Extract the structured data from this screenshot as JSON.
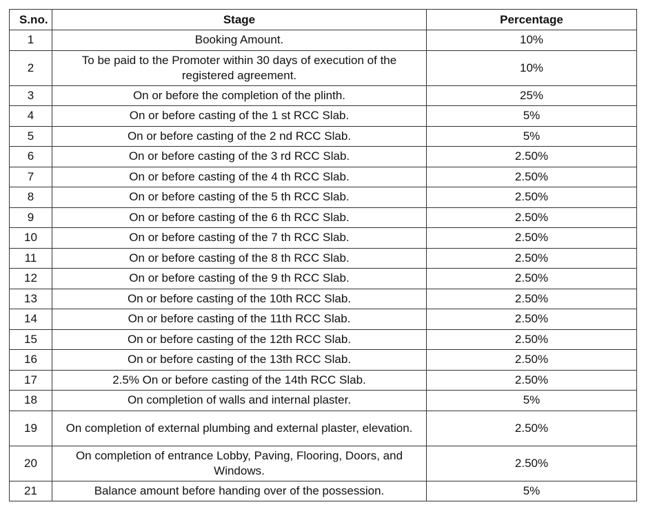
{
  "table": {
    "headers": {
      "sno": "S.no.",
      "stage": "Stage",
      "percentage": "Percentage"
    },
    "rows": [
      {
        "sno": "1",
        "stage": "Booking Amount.",
        "percentage": "10%"
      },
      {
        "sno": "2",
        "stage": "To be paid to the Promoter within 30 days of execution of the registered agreement.",
        "percentage": "10%"
      },
      {
        "sno": "3",
        "stage": "On or before the completion of the plinth.",
        "percentage": "25%"
      },
      {
        "sno": "4",
        "stage": "On or before casting of the 1 st RCC Slab.",
        "percentage": "5%"
      },
      {
        "sno": "5",
        "stage": "On or before casting of the 2 nd RCC Slab.",
        "percentage": "5%"
      },
      {
        "sno": "6",
        "stage": "On or before casting of the 3 rd RCC Slab.",
        "percentage": "2.50%"
      },
      {
        "sno": "7",
        "stage": "On or before casting of the 4 th RCC Slab.",
        "percentage": "2.50%"
      },
      {
        "sno": "8",
        "stage": "On or before casting of the 5 th RCC Slab.",
        "percentage": "2.50%"
      },
      {
        "sno": "9",
        "stage": "On or before casting of the 6 th RCC Slab.",
        "percentage": "2.50%"
      },
      {
        "sno": "10",
        "stage": "On or before casting of the 7 th RCC Slab.",
        "percentage": "2.50%"
      },
      {
        "sno": "11",
        "stage": "On or before casting of the 8 th RCC Slab.",
        "percentage": "2.50%"
      },
      {
        "sno": "12",
        "stage": "On or before casting of the 9 th RCC Slab.",
        "percentage": "2.50%"
      },
      {
        "sno": "13",
        "stage": "On or before casting of the 10th RCC Slab.",
        "percentage": "2.50%"
      },
      {
        "sno": "14",
        "stage": "On or before casting of the 11th RCC Slab.",
        "percentage": "2.50%"
      },
      {
        "sno": "15",
        "stage": "On or before casting of the 12th RCC Slab.",
        "percentage": "2.50%"
      },
      {
        "sno": "16",
        "stage": "On or before casting of the 13th RCC Slab.",
        "percentage": "2.50%"
      },
      {
        "sno": "17",
        "stage": "2.5% On or before casting of the 14th RCC Slab.",
        "percentage": "2.50%"
      },
      {
        "sno": "18",
        "stage": "On completion of walls and internal plaster.",
        "percentage": "5%"
      },
      {
        "sno": "19",
        "stage": "On completion of external plumbing and external plaster, elevation.",
        "percentage": "2.50%"
      },
      {
        "sno": "20",
        "stage": "On completion of entrance Lobby, Paving, Flooring, Doors, and Windows.",
        "percentage": "2.50%"
      },
      {
        "sno": "21",
        "stage": "Balance amount before handing over of the possession.",
        "percentage": "5%"
      }
    ]
  }
}
